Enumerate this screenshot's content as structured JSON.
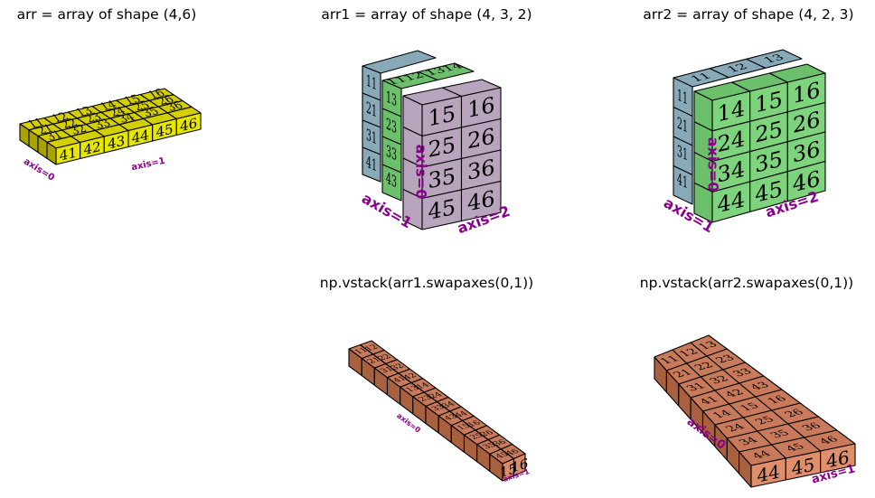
{
  "panels": [
    {
      "title": "arr = array of shape (4,6)",
      "colors": {
        "top": "#d4cf00",
        "front": "#e6e600",
        "side": "#a8a300"
      },
      "face": [
        "41",
        "42",
        "43",
        "44",
        "45",
        "46"
      ],
      "top_rows": [
        [
          "11",
          "12",
          "13",
          "14",
          "15",
          "16"
        ],
        [
          "21",
          "22",
          "23",
          "24",
          "25",
          "26"
        ],
        [
          "31",
          "32",
          "33",
          "34",
          "35",
          "36"
        ]
      ],
      "axis_labels": [
        "axis=0",
        "axis=1"
      ]
    },
    {
      "title": "arr1 = array of shape (4, 3, 2)",
      "colors": {
        "a": "#88aab8",
        "b": "#6cc06c",
        "c": "#b8a4bc"
      },
      "face": [
        [
          "15",
          "16"
        ],
        [
          "25",
          "26"
        ],
        [
          "35",
          "36"
        ],
        [
          "45",
          "46"
        ]
      ],
      "top": [
        "11",
        "12",
        "13",
        "14"
      ],
      "left": [
        "11",
        "21",
        "31",
        "41"
      ],
      "mid": [
        "13",
        "23",
        "33",
        "43"
      ],
      "axis_labels": [
        "axis=0",
        "axis=1",
        "axis=2"
      ]
    },
    {
      "title": "arr2 = array of shape (4, 2, 3)",
      "colors": {
        "a": "#88aab8",
        "b": "#6cc06c",
        "c": "#7dd47d"
      },
      "face": [
        [
          "14",
          "15",
          "16"
        ],
        [
          "24",
          "25",
          "26"
        ],
        [
          "34",
          "35",
          "36"
        ],
        [
          "44",
          "45",
          "46"
        ]
      ],
      "top": [
        "11",
        "12",
        "13"
      ],
      "left": [
        "11",
        "21",
        "31",
        "41"
      ],
      "axis_labels": [
        "axis=0",
        "axis=1",
        "axis=2"
      ]
    },
    {
      "title": "np.vstack(arr1.swapaxes(0,1))",
      "colors": {
        "top": "#c87a5a",
        "front": "#dd8c68",
        "side": "#a8603f"
      },
      "face": [
        "15",
        "16"
      ],
      "rows": [
        "11 12",
        "21 22",
        "31 32",
        "41 42",
        "13 14",
        "23 24",
        "33 34",
        "43 44",
        "15 16",
        "25 26",
        "35 36",
        "45 46"
      ],
      "axis_labels": [
        "axis=0",
        "axis=1"
      ]
    },
    {
      "title": "np.vstack(arr2.swapaxes(0,1))",
      "colors": {
        "top": "#c87a5a",
        "front": "#e08f6c",
        "side": "#a8603f"
      },
      "face": [
        "44",
        "45",
        "46"
      ],
      "rows": [
        "11 12 13",
        "21 22 23",
        "31 32 33",
        "41 42 43",
        "14 15 16",
        "24 25 26",
        "34 35 36",
        "44 45 46"
      ],
      "axis_labels": [
        "axis=0",
        "axis=1"
      ]
    }
  ]
}
